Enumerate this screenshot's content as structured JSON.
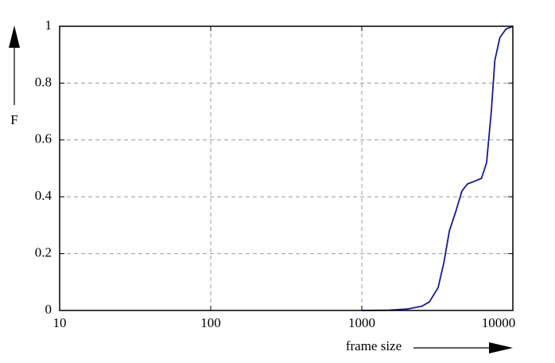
{
  "chart_data": {
    "type": "line",
    "xlabel": "frame size",
    "ylabel": "F",
    "x": [
      1000,
      1500,
      2000,
      2500,
      2800,
      3200,
      3500,
      3800,
      4200,
      4600,
      5000,
      5600,
      6200,
      6700,
      7200,
      7600,
      8200,
      9000,
      10000
    ],
    "series": [
      {
        "color": "#1a1a8c",
        "values": [
          0,
          0.001,
          0.005,
          0.015,
          0.03,
          0.08,
          0.17,
          0.28,
          0.35,
          0.42,
          0.445,
          0.455,
          0.465,
          0.52,
          0.7,
          0.88,
          0.96,
          0.99,
          1
        ]
      }
    ],
    "xscale": "log",
    "xlim": [
      10,
      10000
    ],
    "xticks": [
      10,
      100,
      1000,
      10000
    ],
    "ylim": [
      0,
      1
    ],
    "yticks": [
      0,
      0.2,
      0.4,
      0.6,
      0.8,
      1
    ],
    "grid": true
  }
}
